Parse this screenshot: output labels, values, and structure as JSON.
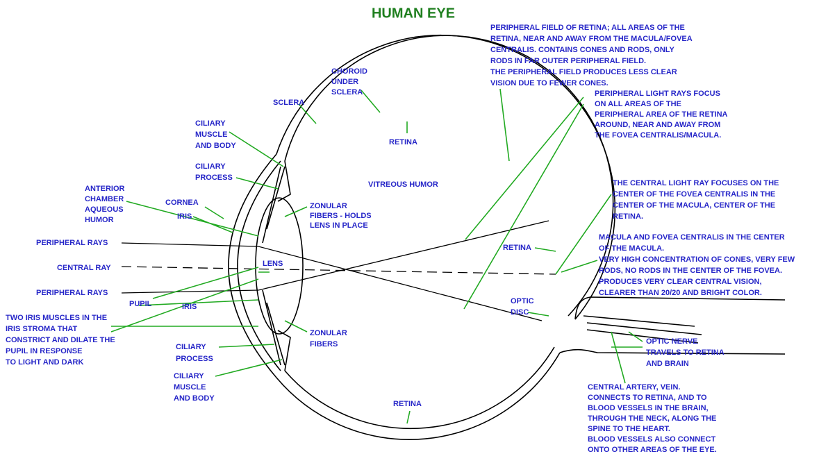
{
  "title": "HUMAN EYE",
  "labels": [
    {
      "lines": [
        "PERIPHERAL FIELD OF RETINA; ALL AREAS OF THE",
        "RETINA, NEAR AND AWAY FROM THE MACULA/FOVEA",
        "CENTRALIS. CONTAINS CONES AND RODS, ONLY",
        "RODS IN FAR OUTER PERIPHERAL FIELD.",
        "THE PERIPHERAL FIELD PRODUCES LESS CLEAR",
        "VISION DUE TO FEWER CONES."
      ]
    },
    {
      "lines": [
        "CHOROID",
        "UNDER",
        "SCLERA"
      ]
    },
    {
      "lines": [
        "SCLERA"
      ]
    },
    {
      "lines": [
        "RETINA"
      ]
    },
    {
      "lines": [
        "CILIARY",
        "MUSCLE",
        "AND BODY"
      ]
    },
    {
      "lines": [
        "PERIPHERAL LIGHT RAYS FOCUS",
        "ON ALL AREAS OF THE",
        "PERIPHERAL AREA OF THE RETINA",
        "AROUND, NEAR AND AWAY FROM",
        "THE FOVEA CENTRALIS/MACULA."
      ]
    },
    {
      "lines": [
        "CILIARY",
        "PROCESS"
      ]
    },
    {
      "lines": [
        "VITREOUS HUMOR"
      ]
    },
    {
      "lines": [
        "ANTERIOR",
        "CHAMBER",
        "AQUEOUS",
        "HUMOR"
      ]
    },
    {
      "lines": [
        "CORNEA"
      ]
    },
    {
      "lines": [
        "IRIS"
      ]
    },
    {
      "lines": [
        "ZONULAR",
        "FIBERS - HOLDS",
        "LENS IN PLACE"
      ]
    },
    {
      "lines": [
        "THE CENTRAL LIGHT RAY FOCUSES ON THE",
        "CENTER OF THE FOVEA CENTRALIS IN THE",
        "CENTER OF THE MACULA, CENTER OF THE",
        "RETINA."
      ]
    },
    {
      "lines": [
        "PERIPHERAL RAYS"
      ]
    },
    {
      "lines": [
        "MACULA AND FOVEA CENTRALIS IN THE CENTER",
        "OF THE MACULA.",
        "VERY HIGH CONCENTRATION OF CONES, VERY FEW",
        "RODS, NO RODS IN THE CENTER OF THE FOVEA.",
        "PRODUCES VERY CLEAR CENTRAL VISION,",
        "CLEARER THAN 20/20 AND BRIGHT COLOR."
      ]
    },
    {
      "lines": [
        "RETINA"
      ]
    },
    {
      "lines": [
        "LENS"
      ]
    },
    {
      "lines": [
        "CENTRAL RAY"
      ]
    },
    {
      "lines": [
        "PERIPHERAL RAYS"
      ]
    },
    {
      "lines": [
        "PUPIL"
      ]
    },
    {
      "lines": [
        "IRIS"
      ]
    },
    {
      "lines": [
        "OPTIC",
        "DISC"
      ]
    },
    {
      "lines": [
        "TWO IRIS MUSCLES IN THE",
        "IRIS STROMA THAT",
        "CONSTRICT AND DILATE THE",
        "PUPIL IN RESPONSE",
        "TO LIGHT AND DARK"
      ]
    },
    {
      "lines": [
        "ZONULAR",
        "FIBERS"
      ]
    },
    {
      "lines": [
        "OPTIC NERVE",
        "TRAVELS TO RETINA",
        "AND BRAIN"
      ]
    },
    {
      "lines": [
        "CILIARY",
        "PROCESS"
      ]
    },
    {
      "lines": [
        "CILIARY",
        "MUSCLE",
        "AND BODY"
      ]
    },
    {
      "lines": [
        "CENTRAL ARTERY, VEIN.",
        "CONNECTS TO RETINA, AND TO",
        "BLOOD VESSELS IN THE BRAIN,",
        "THROUGH THE NECK, ALONG THE",
        "SPINE TO THE HEART.",
        "BLOOD VESSELS ALSO CONNECT",
        "ONTO OTHER AREAS OF THE EYE."
      ]
    },
    {
      "lines": [
        "RETINA"
      ]
    }
  ]
}
